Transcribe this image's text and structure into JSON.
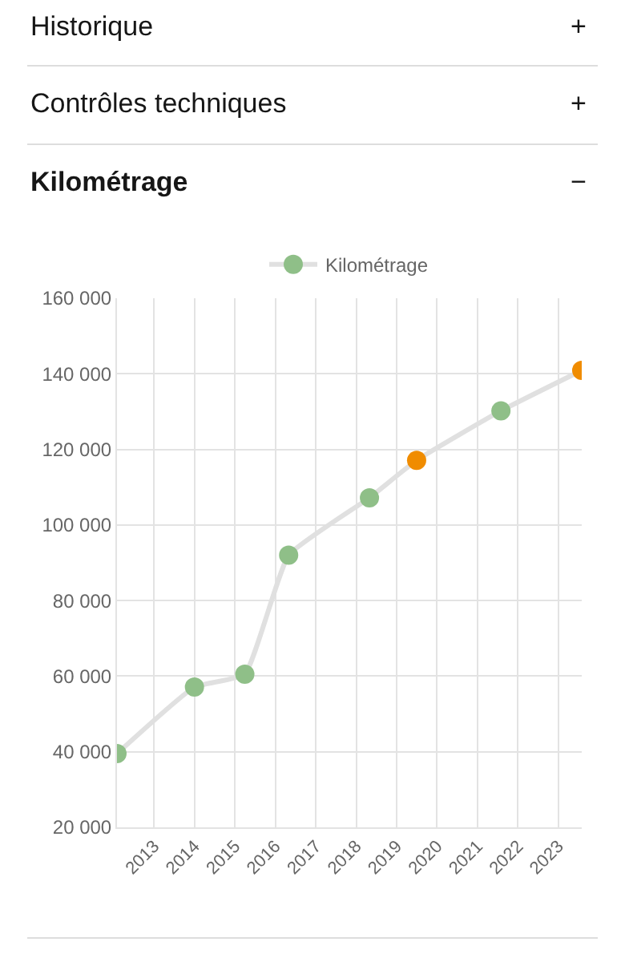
{
  "chart_data": {
    "type": "line",
    "x": [
      "2012-02",
      "2014-01",
      "2015-04",
      "2016-05",
      "2018-05",
      "2019-07",
      "2021-08",
      "2023-08"
    ],
    "series": [
      {
        "name": "Kilométrage",
        "color": "#e0e0e0",
        "colors": [
          "#8fbf88",
          "#8fbf88",
          "#8fbf88",
          "#8fbf88",
          "#8fbf88",
          "#f08c00",
          "#8fbf88",
          "#f08c00"
        ],
        "values": [
          39500,
          57100,
          60500,
          92000,
          107200,
          117100,
          130200,
          140900
        ]
      }
    ],
    "xlim": [
      "2012-02",
      "2023-08"
    ],
    "xticks": [
      {
        "value": "2013",
        "label": "2013"
      },
      {
        "value": "2014",
        "label": "2014"
      },
      {
        "value": "2015",
        "label": "2015"
      },
      {
        "value": "2016",
        "label": "2016"
      },
      {
        "value": "2017",
        "label": "2017"
      },
      {
        "value": "2018",
        "label": "2018"
      },
      {
        "value": "2019",
        "label": "2019"
      },
      {
        "value": "2020",
        "label": "2020"
      },
      {
        "value": "2021",
        "label": "2021"
      },
      {
        "value": "2022",
        "label": "2022"
      },
      {
        "value": "2023",
        "label": "2023"
      }
    ],
    "ylim": [
      20000,
      160000
    ],
    "yticks": [
      {
        "value": 20000,
        "label": "20 000"
      },
      {
        "value": 40000,
        "label": "40 000"
      },
      {
        "value": 60000,
        "label": "60 000"
      },
      {
        "value": 80000,
        "label": "80 000"
      },
      {
        "value": 100000,
        "label": "100 000"
      },
      {
        "value": 120000,
        "label": "120 000"
      },
      {
        "value": 140000,
        "label": "140 000"
      },
      {
        "value": 160000,
        "label": "160 000"
      }
    ],
    "annotations": [
      "Historique",
      "+",
      "Contrôles techniques",
      "+",
      "Kilométrage",
      "−"
    ],
    "grid": true,
    "legend": "top",
    "marker": "circle",
    "line_style": "solid"
  }
}
